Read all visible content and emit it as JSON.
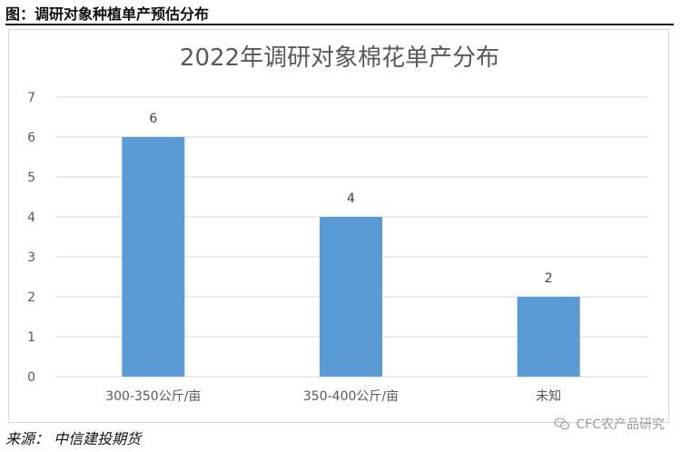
{
  "figure_title": "图：调研对象种植单产预估分布",
  "source_text": "来源： 中信建投期货",
  "watermark_text": "CFC农产品研究",
  "icons": {
    "watermark": "wechat-icon"
  },
  "colors": {
    "bar": "#5b9bd5",
    "grid": "#d9d9d9",
    "axis_text": "#595959",
    "title": "#595959"
  },
  "chart_data": {
    "type": "bar",
    "title": "2022年调研对象棉花单产分布",
    "categories": [
      "300-350公斤/亩",
      "350-400公斤/亩",
      "未知"
    ],
    "values": [
      6,
      4,
      2
    ],
    "xlabel": "",
    "ylabel": "",
    "ylim": [
      0,
      7
    ],
    "yticks": [
      0,
      1,
      2,
      3,
      4,
      5,
      6,
      7
    ],
    "grid": true,
    "data_labels": true
  }
}
